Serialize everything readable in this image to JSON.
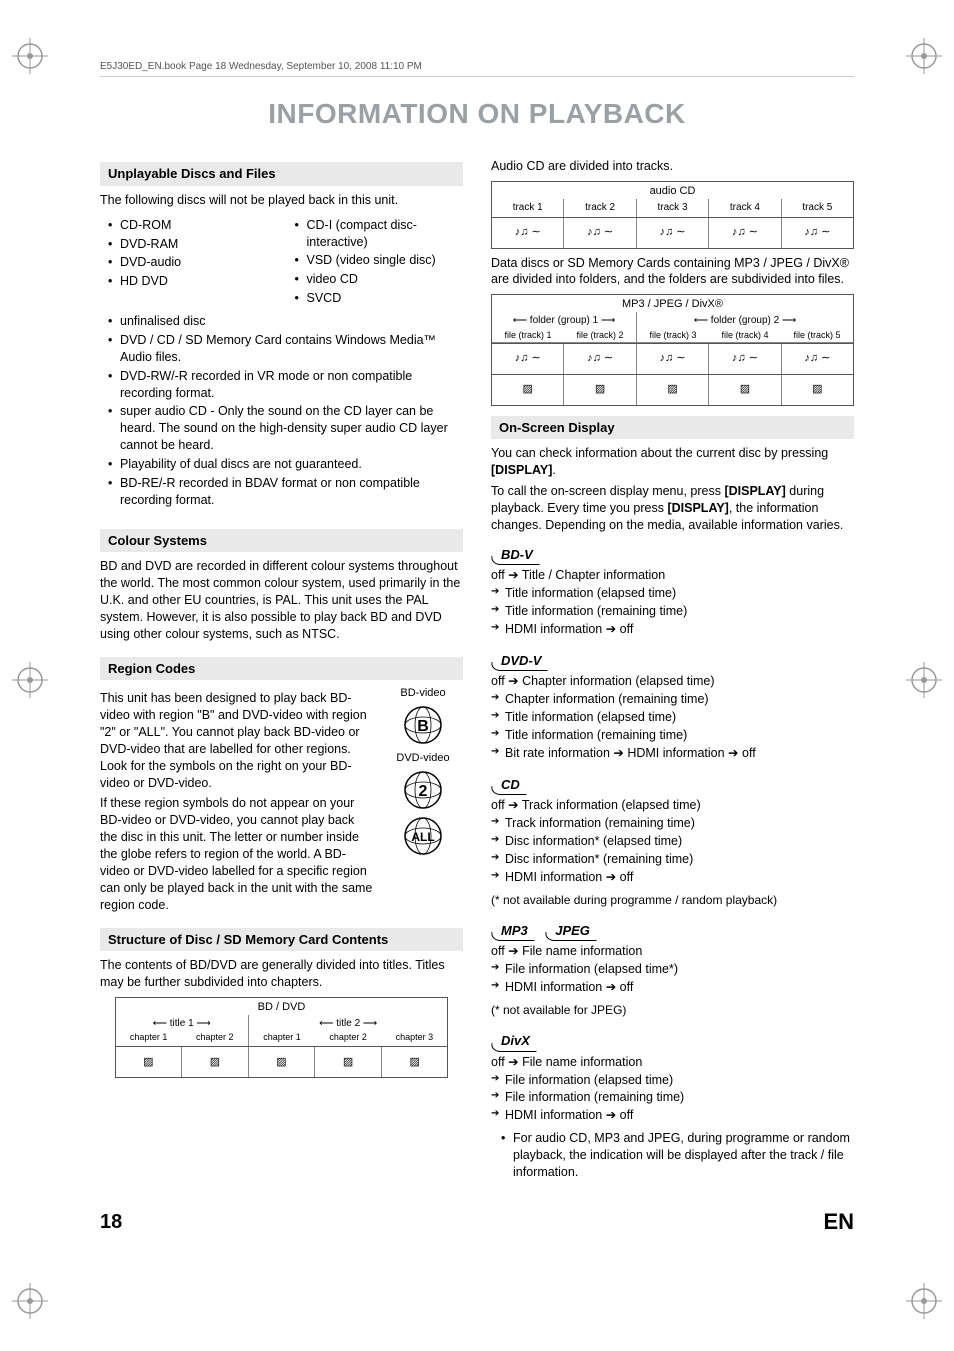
{
  "header": {
    "stamp": "E5J30ED_EN.book  Page 18  Wednesday, September 10, 2008  11:10 PM"
  },
  "title": "INFORMATION ON PLAYBACK",
  "footer": {
    "page": "18",
    "lang": "EN"
  },
  "left": {
    "unplayable": {
      "heading": "Unplayable Discs and Files",
      "intro": "The following discs will not be played back in this unit.",
      "col1": [
        "CD-ROM",
        "DVD-RAM",
        "DVD-audio",
        "HD DVD"
      ],
      "col2": [
        "CD-I (compact disc-interactive)",
        "VSD (video single disc)",
        "video CD",
        "SVCD"
      ],
      "rest": [
        "unfinalised disc",
        "DVD / CD / SD Memory Card contains Windows Media™ Audio files.",
        "DVD-RW/-R recorded in VR mode or non compatible recording format.",
        "super audio CD - Only the sound on the CD layer can be heard. The sound on the high-density super audio CD layer cannot be heard.",
        "Playability of dual discs are not guaranteed.",
        "BD-RE/-R recorded in BDAV format or non compatible recording format."
      ]
    },
    "colour": {
      "heading": "Colour Systems",
      "body": "BD and DVD are recorded in different colour systems throughout the world. The most common colour system, used primarily in the U.K. and other EU countries, is PAL. This unit uses the PAL system. However, it is also possible to play back BD and DVD using other colour systems, such as NTSC."
    },
    "region": {
      "heading": "Region Codes",
      "p1": "This unit has been designed to play back BD-video with region \"B\" and DVD-video with region \"2\" or \"ALL\". You cannot play back BD-video or DVD-video that are labelled for other regions. Look for the symbols on the right on your BD-video or DVD-video.",
      "p2": "If these region symbols do not appear on your BD-video or DVD-video, you cannot play back the disc in this unit. The letter or number inside the globe refers to region of the world. A BD-video or DVD-video labelled for a specific region can only be played back in the unit with the same region code.",
      "label_bd": "BD-video",
      "label_dvd": "DVD-video",
      "globes": [
        "B",
        "2",
        "ALL"
      ]
    },
    "structure": {
      "heading": "Structure of Disc / SD Memory Card Contents",
      "p": "The contents of BD/DVD are generally divided into titles. Titles may be further subdivided into chapters.",
      "diagram": {
        "header": "BD / DVD",
        "titles": [
          {
            "label": "title 1",
            "chapters": [
              "chapter 1",
              "chapter 2"
            ]
          },
          {
            "label": "title 2",
            "chapters": [
              "chapter 1",
              "chapter 2",
              "chapter 3"
            ]
          }
        ]
      }
    }
  },
  "right": {
    "audiocd": {
      "intro": "Audio CD are divided into tracks.",
      "header": "audio CD",
      "tracks": [
        "track 1",
        "track 2",
        "track 3",
        "track 4",
        "track 5"
      ]
    },
    "datadisc": {
      "intro": "Data discs or SD Memory Cards containing MP3 / JPEG / DivX® are divided into folders, and the folders are subdivided into files.",
      "header": "MP3 / JPEG / DivX®",
      "groups": [
        {
          "label": "folder (group) 1",
          "files": [
            "file (track) 1",
            "file (track) 2"
          ]
        },
        {
          "label": "folder (group) 2",
          "files": [
            "file (track) 3",
            "file (track) 4",
            "file (track) 5"
          ]
        }
      ]
    },
    "osd": {
      "heading": "On-Screen Display",
      "p1_a": "You can check information about the current disc by pressing ",
      "p1_b": "[DISPLAY]",
      "p1_c": ".",
      "p2_a": "To call the on-screen display menu, press ",
      "p2_b": "[DISPLAY]",
      "p2_c": " during playback. Every time you press ",
      "p2_d": "[DISPLAY]",
      "p2_e": ", the information changes. Depending on the media, available information varies."
    },
    "media": {
      "bdv": {
        "label": "BD-V",
        "lines": [
          "off ➔ Title / Chapter information",
          "Title information (elapsed time)",
          "Title information (remaining time)",
          "HDMI information ➔ off"
        ]
      },
      "dvdv": {
        "label": "DVD-V",
        "lines": [
          "off ➔ Chapter information (elapsed time)",
          "Chapter information (remaining time)",
          "Title information (elapsed time)",
          "Title information (remaining time)",
          "Bit rate information ➔ HDMI information ➔ off"
        ]
      },
      "cd": {
        "label": "CD",
        "lines": [
          "off ➔ Track information (elapsed time)",
          "Track information (remaining time)",
          "Disc information* (elapsed time)",
          "Disc information* (remaining time)",
          "HDMI information ➔ off"
        ],
        "note": "(* not available during programme / random playback)"
      },
      "mp3jpeg": {
        "label1": "MP3",
        "label2": "JPEG",
        "lines": [
          "off ➔ File name information",
          "File information (elapsed time*)",
          "HDMI information ➔ off"
        ],
        "note": "(* not available for JPEG)"
      },
      "divx": {
        "label": "DivX",
        "lines": [
          "off ➔ File name information",
          "File information (elapsed time)",
          "File information (remaining time)",
          "HDMI information ➔ off"
        ]
      }
    },
    "footnote": "For audio CD, MP3 and JPEG, during programme or random playback, the indication will be displayed after the track / file information."
  }
}
